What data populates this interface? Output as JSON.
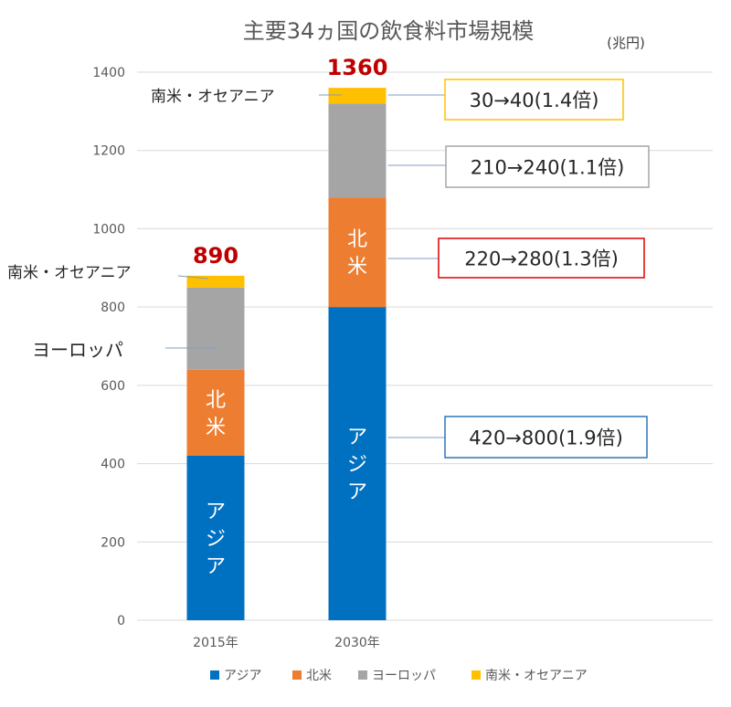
{
  "chart_data": {
    "type": "bar",
    "stacked": true,
    "title": "主要34ヵ国の飲食料市場規模",
    "unit": "(兆円)",
    "categories": [
      "2015年",
      "2030年"
    ],
    "ylim": [
      0,
      1400
    ],
    "yticks": [
      0,
      200,
      400,
      600,
      800,
      1000,
      1200,
      1400
    ],
    "grid": true,
    "legend_position": "bottom",
    "series": [
      {
        "name": "アジア",
        "values": [
          420,
          800
        ],
        "color": "#0070C0"
      },
      {
        "name": "北米",
        "values": [
          220,
          280
        ],
        "color": "#ED7D31"
      },
      {
        "name": "ヨーロッパ",
        "values": [
          210,
          240
        ],
        "color": "#A5A5A5"
      },
      {
        "name": "南米・オセアニア",
        "values": [
          30,
          40
        ],
        "color": "#FFC000"
      }
    ],
    "totals": [
      "890",
      "1360"
    ],
    "total_color": "#C00000",
    "segment_labels": [
      {
        "category": 0,
        "series": 0,
        "text": "アジア"
      },
      {
        "category": 0,
        "series": 1,
        "text": "北米"
      },
      {
        "category": 1,
        "series": 0,
        "text": "アジア"
      },
      {
        "category": 1,
        "series": 1,
        "text": "北米"
      }
    ],
    "callouts_left": [
      {
        "category": 0,
        "series": 3,
        "text": "南米・オセアニア"
      },
      {
        "category": 0,
        "series": 2,
        "text": "ヨーロッパ"
      },
      {
        "category": 1,
        "series": 3,
        "text": "南米・オセアニア"
      }
    ],
    "callouts_right": [
      {
        "series": 3,
        "text": "30→40(1.4倍)",
        "border": "#FFC000"
      },
      {
        "series": 2,
        "text": "210→240(1.1倍)",
        "border": "#A5A5A5"
      },
      {
        "series": 1,
        "text": "220→280(1.3倍)",
        "border": "#E00000"
      },
      {
        "series": 0,
        "text": "420→800(1.9倍)",
        "border": "#2E75B6"
      }
    ]
  }
}
